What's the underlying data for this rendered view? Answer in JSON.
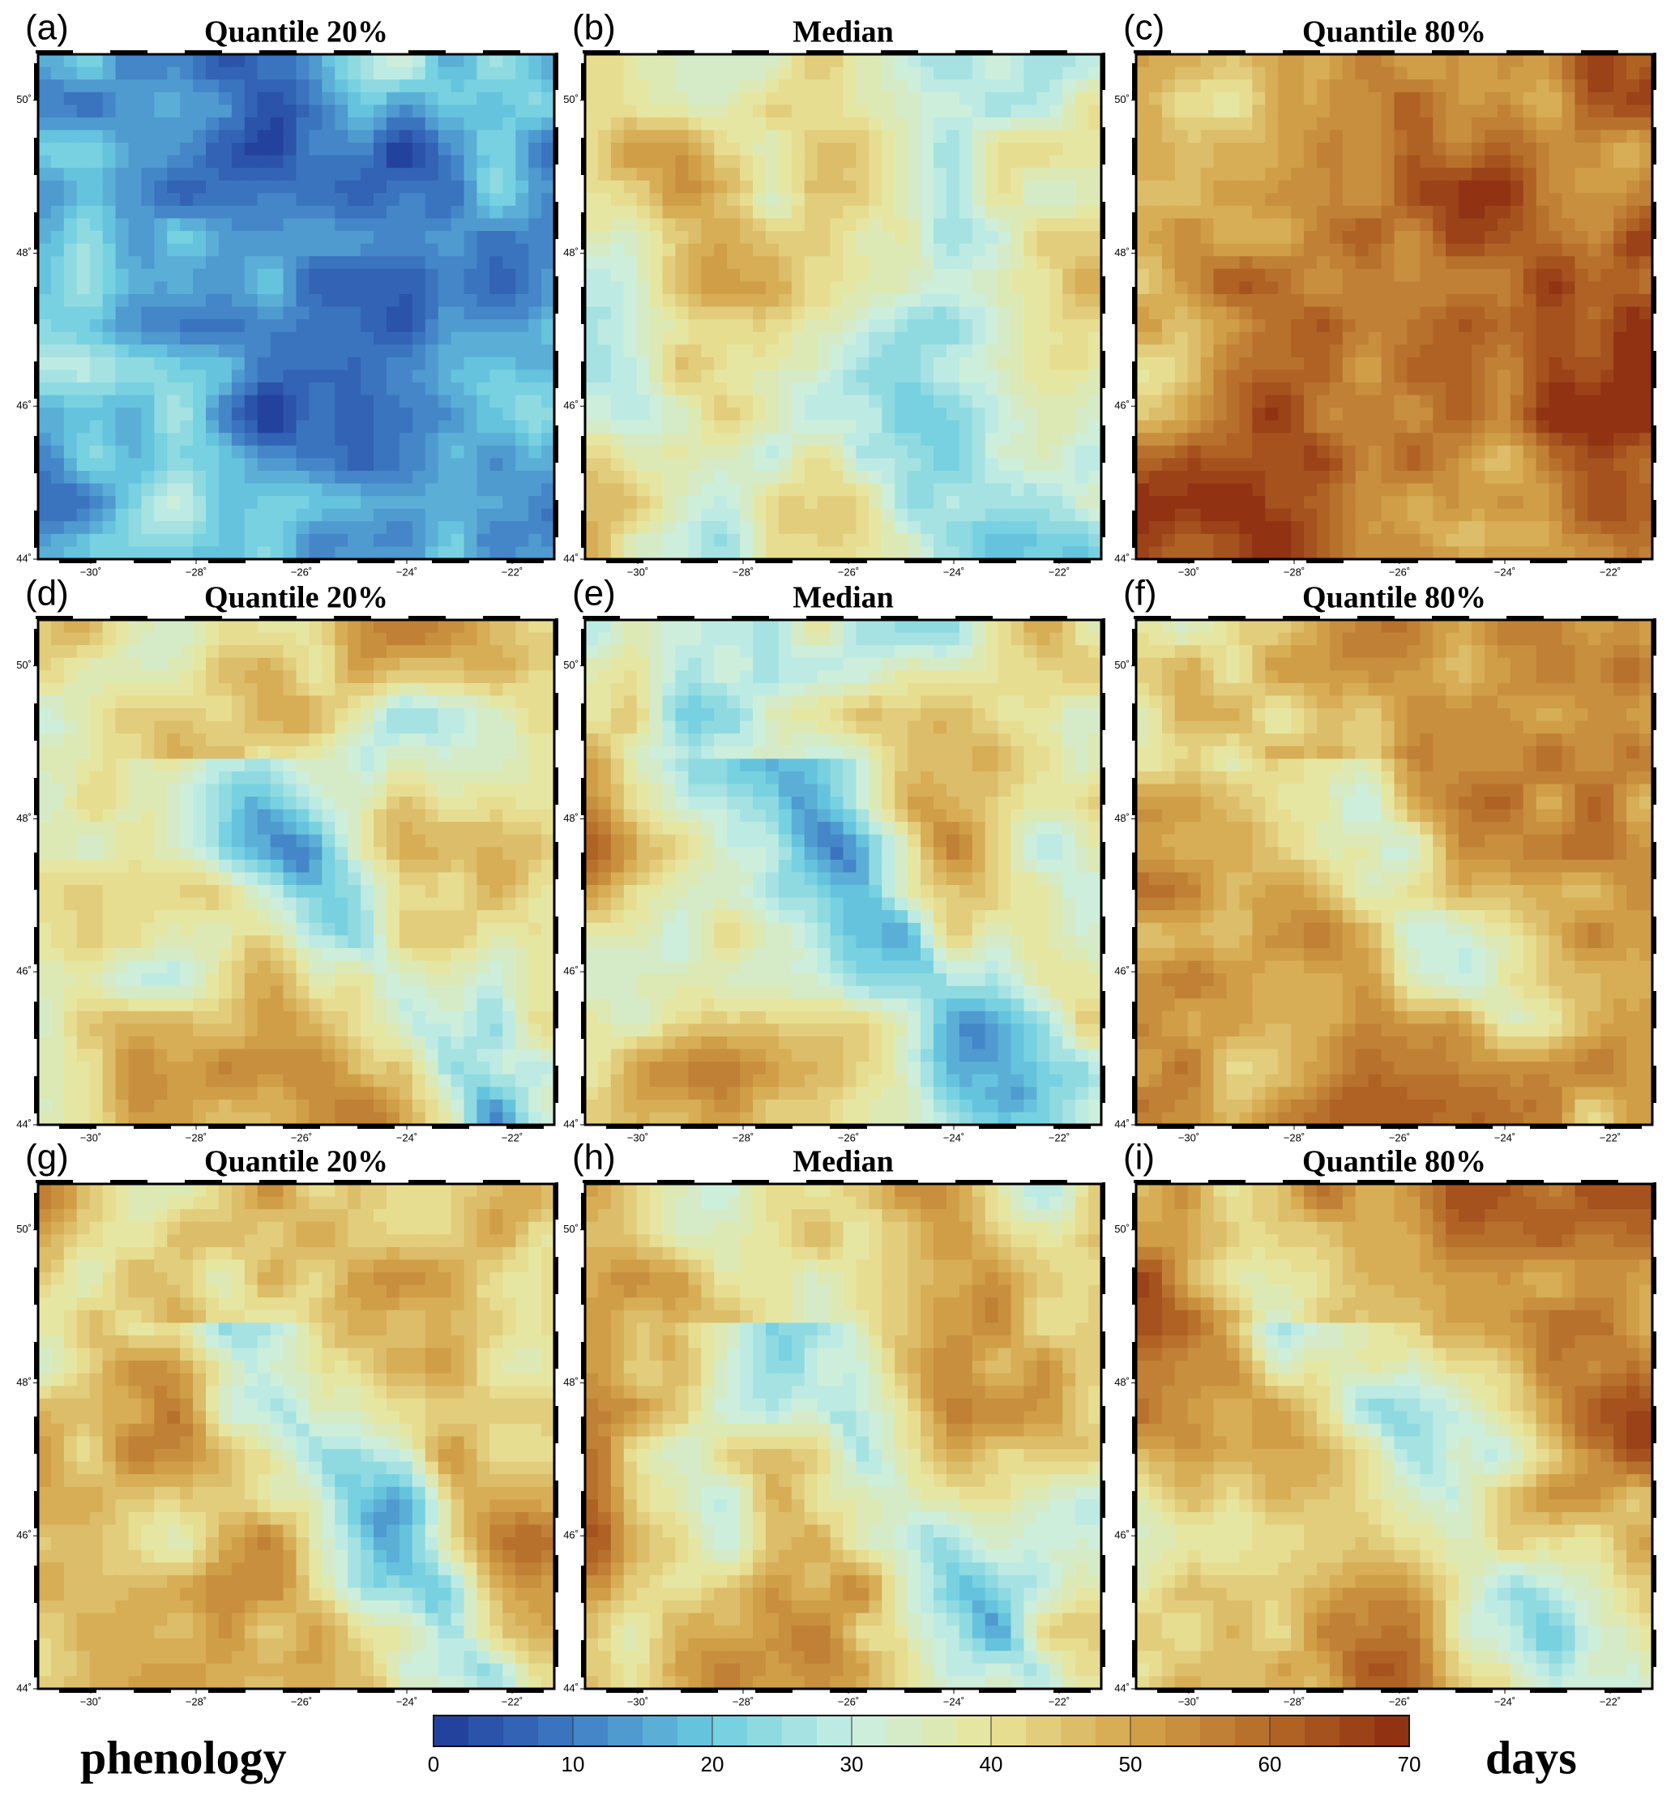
{
  "panels": [
    {
      "label": "(a)",
      "title": "Quantile 20%"
    },
    {
      "label": "(b)",
      "title": "Median"
    },
    {
      "label": "(c)",
      "title": "Quantile 80%"
    },
    {
      "label": "(d)",
      "title": "Quantile 20%"
    },
    {
      "label": "(e)",
      "title": "Median"
    },
    {
      "label": "(f)",
      "title": "Quantile 80%"
    },
    {
      "label": "(g)",
      "title": "Quantile 20%"
    },
    {
      "label": "(h)",
      "title": "Median"
    },
    {
      "label": "(i)",
      "title": "Quantile 80%"
    }
  ],
  "map_axes": {
    "xlim": [
      -31,
      -21.2
    ],
    "ylim": [
      44,
      50.6
    ],
    "xticks": [
      {
        "value": -30,
        "label": "−30˚"
      },
      {
        "value": -28,
        "label": "−28˚"
      },
      {
        "value": -26,
        "label": "−26˚"
      },
      {
        "value": -24,
        "label": "−24˚"
      },
      {
        "value": -22,
        "label": "−22˚"
      }
    ],
    "yticks": [
      {
        "value": 44,
        "label": "44˚"
      },
      {
        "value": 46,
        "label": "46˚"
      },
      {
        "value": 48,
        "label": "48˚"
      },
      {
        "value": 50,
        "label": "50˚"
      }
    ]
  },
  "colorbar": {
    "lim": [
      0,
      70
    ],
    "ticks": [
      0,
      10,
      20,
      30,
      40,
      50,
      60,
      70
    ],
    "colors": [
      "#1f3a98",
      "#3e7cc4",
      "#6ccde0",
      "#c8efe3",
      "#eae59a",
      "#d4a54c",
      "#b46a27",
      "#8c2a0f"
    ]
  },
  "left_label": "phenology",
  "right_label": "days"
}
